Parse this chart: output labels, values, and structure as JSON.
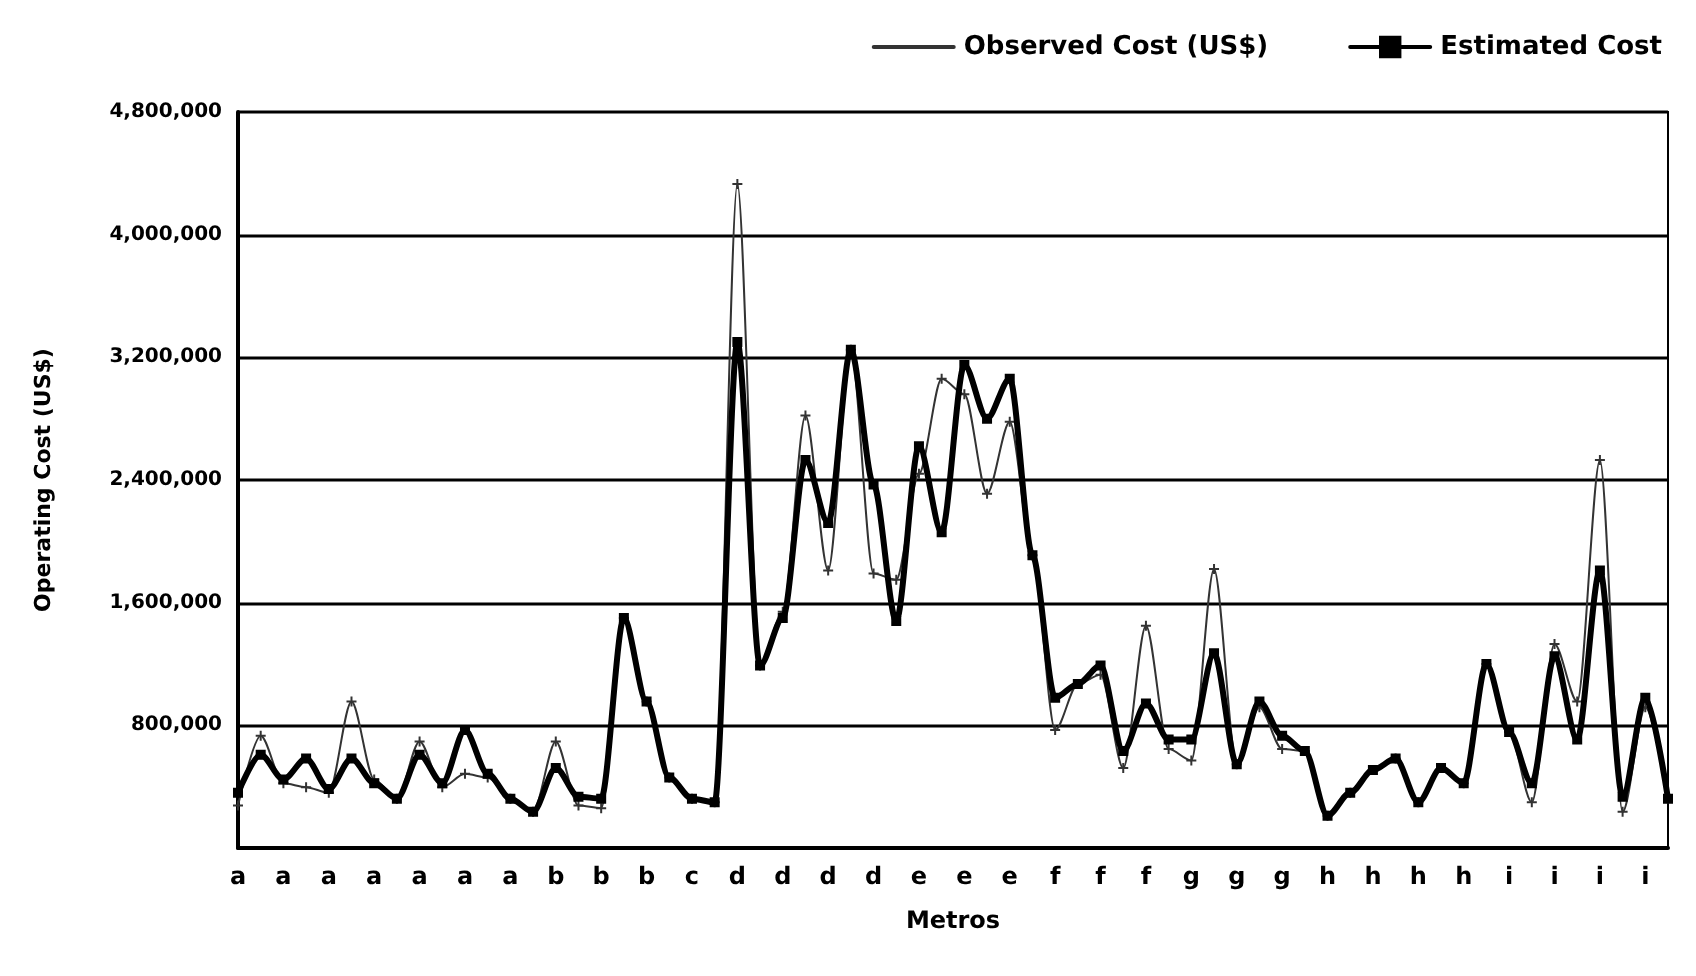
{
  "chart_data": {
    "type": "line",
    "xlabel": "Metros",
    "ylabel": "Operating Cost (US$)",
    "categories": [
      "a",
      null,
      "a",
      null,
      "a",
      null,
      "a",
      null,
      "a",
      null,
      "a",
      null,
      "a",
      null,
      "b",
      null,
      "b",
      null,
      "b",
      null,
      "c",
      null,
      "d",
      null,
      "d",
      null,
      "d",
      null,
      "d",
      null,
      "e",
      null,
      "e",
      null,
      "e",
      null,
      "f",
      null,
      "f",
      null,
      "f",
      null,
      "g",
      null,
      "g",
      null,
      "g",
      null,
      "h",
      null,
      "h",
      null,
      "h",
      null,
      "h",
      null,
      "i",
      null,
      "i",
      null,
      "i",
      null,
      "i",
      null
    ],
    "ylim": [
      0,
      4800000
    ],
    "yticks": [
      {
        "value": 0,
        "label": null
      },
      {
        "value": 800000,
        "label": "800,000"
      },
      {
        "value": 1600000,
        "label": "1,600,000"
      },
      {
        "value": 2400000,
        "label": "2,400,000"
      },
      {
        "value": 3200000,
        "label": "3,200,000"
      },
      {
        "value": 4000000,
        "label": "4,000,000"
      },
      {
        "value": 4800000,
        "label": "4,800,000"
      }
    ],
    "grid": "y",
    "legend": "top right",
    "series": [
      {
        "name": "Observed Cost (US$)",
        "color": "#333333",
        "marker": "cross",
        "values": [
          277000,
          732000,
          422000,
          397000,
          360000,
          955000,
          447000,
          322000,
          695000,
          397000,
          484000,
          459000,
          322000,
          236000,
          695000,
          277000,
          260000,
          1500000,
          955000,
          459000,
          322000,
          298000,
          4330000,
          1190000,
          1540000,
          2820000,
          1810000,
          3250000,
          1790000,
          1750000,
          2440000,
          3060000,
          2960000,
          2310000,
          2780000,
          1910000,
          769000,
          1070000,
          1130000,
          521000,
          1450000,
          645000,
          571000,
          1820000,
          546000,
          918000,
          645000,
          633000,
          211000,
          360000,
          508000,
          583000,
          298000,
          521000,
          422000,
          1200000,
          757000,
          298000,
          1330000,
          955000,
          2530000,
          236000,
          918000,
          322000
        ]
      },
      {
        "name": "Estimated Cost",
        "color": "#000000",
        "marker": "square",
        "values": [
          360000,
          608000,
          447000,
          583000,
          385000,
          583000,
          422000,
          322000,
          608000,
          422000,
          769000,
          484000,
          322000,
          236000,
          521000,
          335000,
          322000,
          1500000,
          955000,
          459000,
          322000,
          298000,
          3300000,
          1190000,
          1500000,
          2530000,
          2120000,
          3250000,
          2370000,
          1480000,
          2620000,
          2060000,
          3150000,
          2800000,
          3060000,
          1910000,
          980000,
          1070000,
          1190000,
          633000,
          943000,
          707000,
          707000,
          1270000,
          546000,
          955000,
          732000,
          633000,
          211000,
          360000,
          508000,
          583000,
          298000,
          521000,
          422000,
          1200000,
          757000,
          422000,
          1250000,
          707000,
          1810000,
          335000,
          980000,
          322000
        ]
      }
    ]
  }
}
